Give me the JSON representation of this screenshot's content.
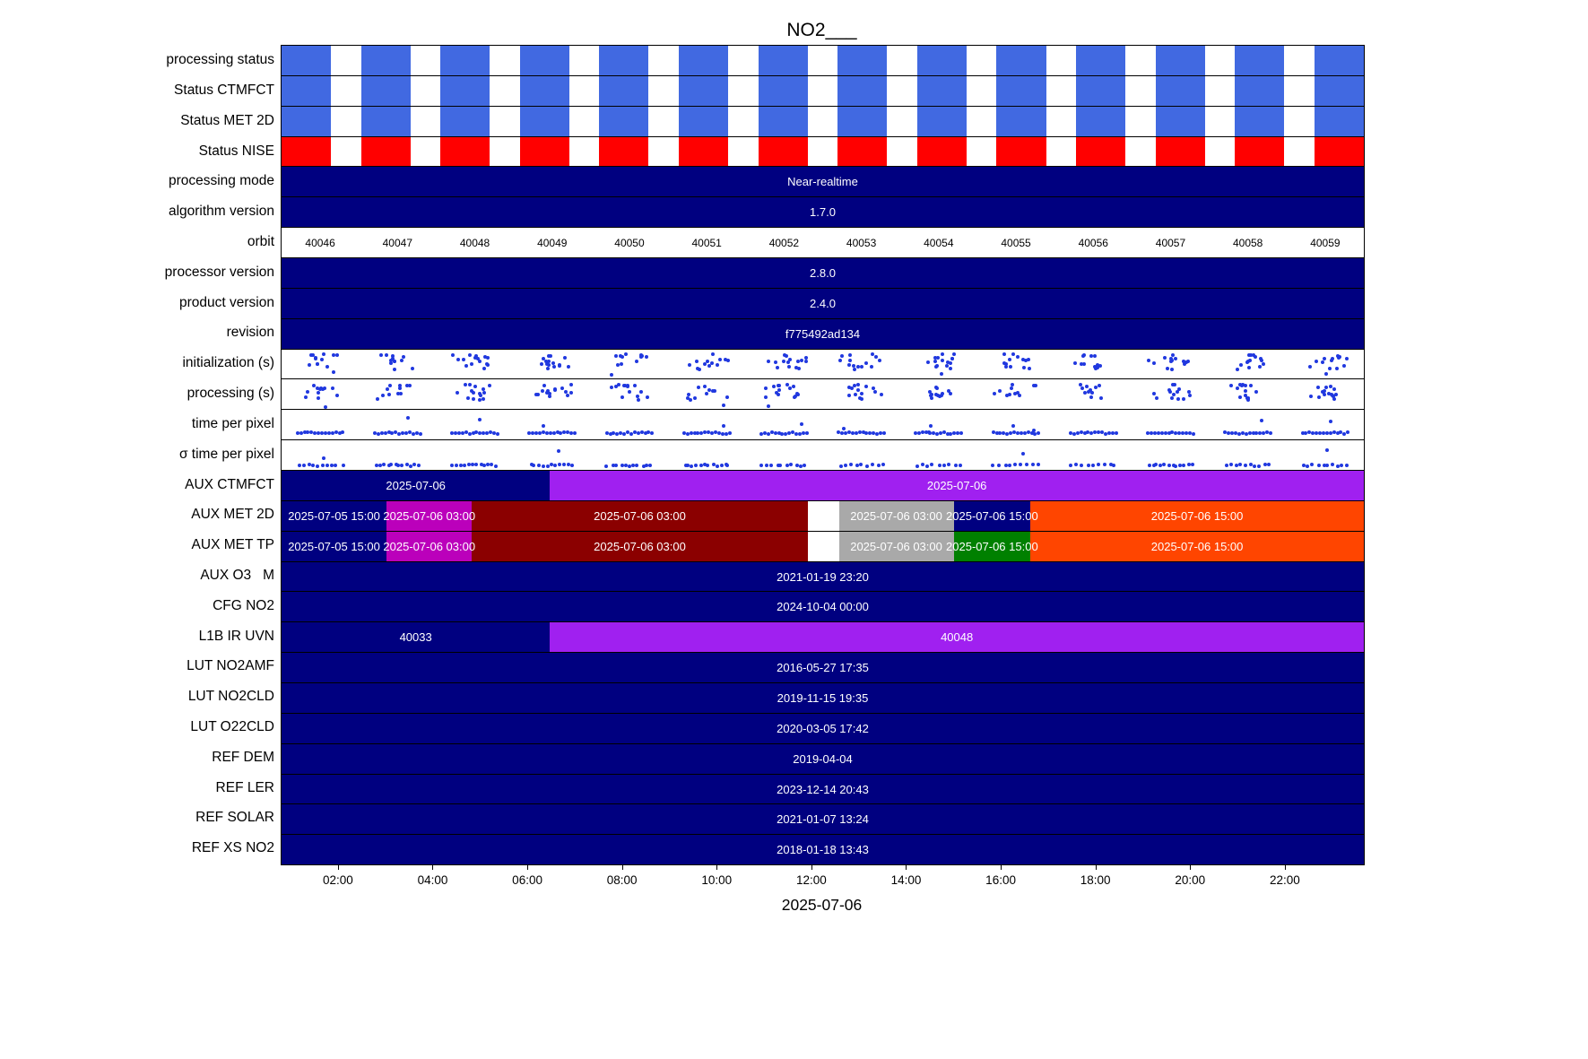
{
  "chart_data": {
    "type": "heatmap",
    "subtype": "product-status-timeline",
    "title": "NO2___",
    "legend": "none",
    "grid": false,
    "colors": {
      "royalblue": "#4169E1",
      "red": "#FF0000",
      "navy": "#000080",
      "purple": "#A020F0",
      "magenta": "#BB00BB",
      "darkred": "#8B0000",
      "gray": "#A9A9A9",
      "green": "#008000",
      "orangered": "#FF4500",
      "white": "#FFFFFF",
      "dot": "#2038DF"
    },
    "xaxis": {
      "range_hours": [
        0.79,
        23.65
      ],
      "date_label": "2025-07-06",
      "ticks": [
        {
          "hour": 2,
          "label": "02:00"
        },
        {
          "hour": 4,
          "label": "04:00"
        },
        {
          "hour": 6,
          "label": "06:00"
        },
        {
          "hour": 8,
          "label": "08:00"
        },
        {
          "hour": 10,
          "label": "10:00"
        },
        {
          "hour": 12,
          "label": "12:00"
        },
        {
          "hour": 14,
          "label": "14:00"
        },
        {
          "hour": 16,
          "label": "16:00"
        },
        {
          "hour": 18,
          "label": "18:00"
        },
        {
          "hour": 20,
          "label": "20:00"
        },
        {
          "hour": 22,
          "label": "22:00"
        }
      ]
    },
    "rows": [
      {
        "kind": "blocks",
        "label": "processing status",
        "color_key": "royalblue",
        "count": 14
      },
      {
        "kind": "blocks",
        "label": "Status CTMFCT",
        "color_key": "royalblue",
        "count": 14
      },
      {
        "kind": "blocks",
        "label": "Status MET 2D",
        "color_key": "royalblue",
        "count": 14
      },
      {
        "kind": "blocks",
        "label": "Status NISE",
        "color_key": "red",
        "count": 14
      },
      {
        "kind": "bar",
        "label": "processing mode",
        "segments": [
          {
            "text": "Near-realtime",
            "color": "#000080",
            "span": [
              0,
              100
            ]
          }
        ]
      },
      {
        "kind": "bar",
        "label": "algorithm version",
        "segments": [
          {
            "text": "1.7.0",
            "color": "#000080",
            "span": [
              0,
              100
            ]
          }
        ]
      },
      {
        "kind": "orbits",
        "label": "orbit",
        "values": [
          "40046",
          "40047",
          "40048",
          "40049",
          "40050",
          "40051",
          "40052",
          "40053",
          "40054",
          "40055",
          "40056",
          "40057",
          "40058",
          "40059"
        ]
      },
      {
        "kind": "bar",
        "label": "processor version",
        "segments": [
          {
            "text": "2.8.0",
            "color": "#000080",
            "span": [
              0,
              100
            ]
          }
        ]
      },
      {
        "kind": "bar",
        "label": "product version",
        "segments": [
          {
            "text": "2.4.0",
            "color": "#000080",
            "span": [
              0,
              100
            ]
          }
        ]
      },
      {
        "kind": "bar",
        "label": "revision",
        "segments": [
          {
            "text": "f775492ad134",
            "color": "#000080",
            "span": [
              0,
              100
            ]
          }
        ]
      },
      {
        "kind": "scatter",
        "label": "initialization (s)",
        "pattern": "cloud",
        "seed": 11,
        "clusters": 14
      },
      {
        "kind": "scatter",
        "label": "processing (s)",
        "pattern": "cloud",
        "seed": 23,
        "clusters": 14
      },
      {
        "kind": "scatter",
        "label": "time per pixel",
        "pattern": "flat",
        "seed": 37,
        "clusters": 14
      },
      {
        "kind": "scatter",
        "label": "σ time per pixel",
        "pattern": "flatlow",
        "seed": 51,
        "clusters": 14
      },
      {
        "kind": "bar",
        "label": "AUX CTMFCT",
        "segments": [
          {
            "text": "2025-07-06",
            "color": "#000080",
            "span": [
              0,
              24.8
            ]
          },
          {
            "text": "2025-07-06",
            "color": "#A020F0",
            "span": [
              24.8,
              100
            ]
          }
        ]
      },
      {
        "kind": "bar",
        "label": "AUX MET 2D",
        "segments": [
          {
            "text": "2025-07-05 15:00",
            "color": "#000080",
            "span": [
              0,
              9.7
            ]
          },
          {
            "text": "2025-07-06 03:00",
            "color": "#BB00BB",
            "span": [
              9.7,
              17.6
            ]
          },
          {
            "text": "2025-07-06 03:00",
            "color": "#8B0000",
            "span": [
              17.6,
              48.6
            ]
          },
          {
            "text": "",
            "color": "#FFFFFF",
            "span": [
              48.6,
              51.5
            ]
          },
          {
            "text": "2025-07-06 03:00",
            "color": "#A9A9A9",
            "span": [
              51.5,
              62.1
            ]
          },
          {
            "text": "2025-07-06 15:00",
            "color": "#000080",
            "span": [
              62.1,
              69.2
            ]
          },
          {
            "text": "2025-07-06 15:00",
            "color": "#FF4500",
            "span": [
              69.2,
              100
            ]
          }
        ]
      },
      {
        "kind": "bar",
        "label": "AUX MET TP",
        "segments": [
          {
            "text": "2025-07-05 15:00",
            "color": "#000080",
            "span": [
              0,
              9.7
            ]
          },
          {
            "text": "2025-07-06 03:00",
            "color": "#BB00BB",
            "span": [
              9.7,
              17.6
            ]
          },
          {
            "text": "2025-07-06 03:00",
            "color": "#8B0000",
            "span": [
              17.6,
              48.6
            ]
          },
          {
            "text": "",
            "color": "#FFFFFF",
            "span": [
              48.6,
              51.5
            ]
          },
          {
            "text": "2025-07-06 03:00",
            "color": "#A9A9A9",
            "span": [
              51.5,
              62.1
            ]
          },
          {
            "text": "2025-07-06 15:00",
            "color": "#008000",
            "span": [
              62.1,
              69.2
            ]
          },
          {
            "text": "2025-07-06 15:00",
            "color": "#FF4500",
            "span": [
              69.2,
              100
            ]
          }
        ]
      },
      {
        "kind": "bar",
        "label": "AUX O3   M",
        "segments": [
          {
            "text": "2021-01-19 23:20",
            "color": "#000080",
            "span": [
              0,
              100
            ]
          }
        ]
      },
      {
        "kind": "bar",
        "label": "CFG NO2",
        "segments": [
          {
            "text": "2024-10-04 00:00",
            "color": "#000080",
            "span": [
              0,
              100
            ]
          }
        ]
      },
      {
        "kind": "bar",
        "label": "L1B IR UVN",
        "segments": [
          {
            "text": "40033",
            "color": "#000080",
            "span": [
              0,
              24.8
            ]
          },
          {
            "text": "40048",
            "color": "#A020F0",
            "span": [
              24.8,
              100
            ]
          }
        ]
      },
      {
        "kind": "bar",
        "label": "LUT NO2AMF",
        "segments": [
          {
            "text": "2016-05-27 17:35",
            "color": "#000080",
            "span": [
              0,
              100
            ]
          }
        ]
      },
      {
        "kind": "bar",
        "label": "LUT NO2CLD",
        "segments": [
          {
            "text": "2019-11-15 19:35",
            "color": "#000080",
            "span": [
              0,
              100
            ]
          }
        ]
      },
      {
        "kind": "bar",
        "label": "LUT O22CLD",
        "segments": [
          {
            "text": "2020-03-05 17:42",
            "color": "#000080",
            "span": [
              0,
              100
            ]
          }
        ]
      },
      {
        "kind": "bar",
        "label": "REF DEM",
        "segments": [
          {
            "text": "2019-04-04",
            "color": "#000080",
            "span": [
              0,
              100
            ]
          }
        ]
      },
      {
        "kind": "bar",
        "label": "REF LER",
        "segments": [
          {
            "text": "2023-12-14 20:43",
            "color": "#000080",
            "span": [
              0,
              100
            ]
          }
        ]
      },
      {
        "kind": "bar",
        "label": "REF SOLAR",
        "segments": [
          {
            "text": "2021-01-07 13:24",
            "color": "#000080",
            "span": [
              0,
              100
            ]
          }
        ]
      },
      {
        "kind": "bar",
        "label": "REF XS NO2",
        "segments": [
          {
            "text": "2018-01-18 13:43",
            "color": "#000080",
            "span": [
              0,
              100
            ]
          }
        ]
      }
    ]
  }
}
